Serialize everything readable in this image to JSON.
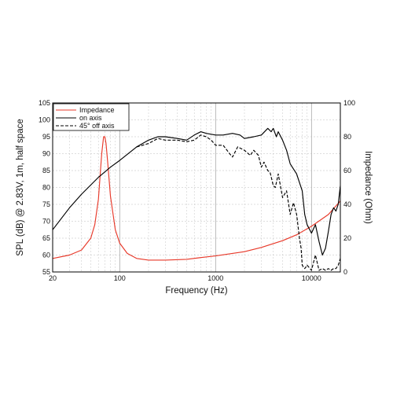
{
  "chart_data": {
    "type": "line",
    "xlabel": "Frequency (Hz)",
    "ylabel_left": "SPL (dB) @ 2.83V, 1m, half space",
    "ylabel_right": "Impedance (Ohm)",
    "x_scale": "log",
    "xlim": [
      20,
      20000
    ],
    "ylim_left": [
      55,
      105
    ],
    "ylim_right": [
      0,
      100
    ],
    "x_tick_labels": [
      "20",
      "100",
      "1000",
      "10000"
    ],
    "x_tick_values": [
      20,
      100,
      1000,
      10000
    ],
    "y_left_ticks": [
      55,
      60,
      65,
      70,
      75,
      80,
      85,
      90,
      95,
      100,
      105
    ],
    "y_right_ticks": [
      0,
      20,
      40,
      60,
      80,
      100
    ],
    "grid": true,
    "legend_position": "top-left",
    "colors": {
      "impedance": "#e8392a",
      "on_axis": "#000000",
      "off_axis": "#000000"
    },
    "series": [
      {
        "name": "Impedance",
        "axis": "right",
        "style": "solid",
        "x": [
          20,
          30,
          40,
          50,
          55,
          60,
          65,
          68,
          70,
          72,
          75,
          80,
          90,
          100,
          120,
          150,
          200,
          300,
          500,
          700,
          1000,
          2000,
          3000,
          5000,
          7000,
          10000,
          15000,
          20000
        ],
        "y": [
          8,
          10,
          13,
          20,
          28,
          43,
          70,
          80,
          80,
          76,
          65,
          45,
          25,
          17,
          11,
          8,
          7,
          7,
          7.5,
          8.5,
          9.5,
          12,
          14.5,
          18.5,
          22,
          27,
          34,
          42
        ]
      },
      {
        "name": "on axis",
        "axis": "left",
        "style": "solid",
        "x": [
          20,
          30,
          40,
          60,
          80,
          100,
          150,
          200,
          250,
          300,
          400,
          500,
          600,
          700,
          800,
          1000,
          1200,
          1500,
          1800,
          2000,
          2500,
          3000,
          3500,
          3800,
          4000,
          4300,
          4500,
          5000,
          5500,
          6000,
          7000,
          8000,
          8500,
          9000,
          10000,
          11000,
          12000,
          13000,
          14000,
          15000,
          16000,
          17000,
          18000,
          19000,
          20000
        ],
        "y": [
          67.5,
          74,
          78,
          83,
          86,
          88,
          92,
          94,
          95,
          95,
          94.5,
          94,
          95.5,
          96.5,
          96,
          95.5,
          95.5,
          96,
          95.5,
          94.5,
          95,
          95.5,
          97.5,
          96.5,
          97.5,
          95,
          96.5,
          94,
          91,
          87,
          84,
          79,
          72,
          69,
          66.5,
          69,
          64,
          60,
          62,
          67,
          72,
          74,
          73,
          75,
          80.5
        ]
      },
      {
        "name": "45° off axis",
        "axis": "left",
        "style": "dashed",
        "x": [
          150,
          200,
          250,
          300,
          400,
          500,
          600,
          700,
          800,
          900,
          1000,
          1200,
          1400,
          1500,
          1700,
          2000,
          2300,
          2500,
          2800,
          3000,
          3200,
          3500,
          3700,
          4000,
          4200,
          4500,
          5000,
          5500,
          6000,
          6500,
          7000,
          7500,
          7800,
          8000,
          8500,
          9000,
          10000,
          11000,
          12000,
          13000,
          14000,
          15000,
          16000,
          17000,
          18000,
          19000,
          20000
        ],
        "y": [
          92,
          93,
          94.5,
          94,
          94,
          93.5,
          94,
          95.5,
          95,
          94,
          92.5,
          92.5,
          90,
          89,
          92,
          91,
          89.5,
          91,
          89.5,
          86,
          87.5,
          85,
          84.5,
          80.5,
          80,
          84,
          77,
          79,
          72,
          75.5,
          72,
          65,
          62,
          57,
          56,
          57,
          55.5,
          60,
          55.5,
          56,
          55.5,
          56,
          55.5,
          56,
          56,
          57,
          59
        ]
      }
    ]
  }
}
